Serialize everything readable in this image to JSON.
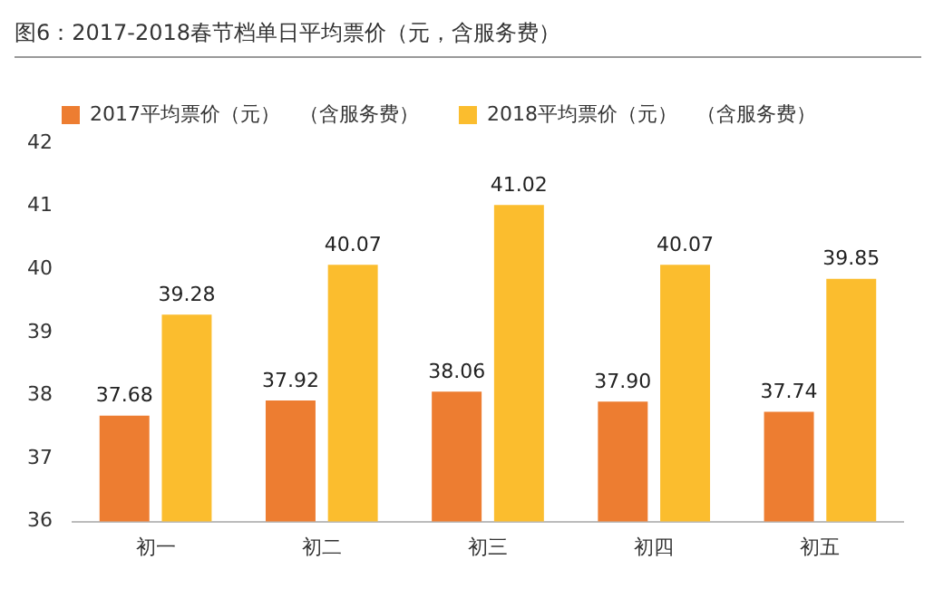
{
  "chart_data": {
    "type": "bar",
    "title": "图6：2017-2018春节档单日平均票价（元，含服务费）",
    "categories": [
      "初一",
      "初二",
      "初三",
      "初四",
      "初五"
    ],
    "series": [
      {
        "name": "2017平均票价（元）   （含服务费）",
        "color": "#ed7d31",
        "values": [
          37.68,
          37.92,
          38.06,
          37.9,
          37.74
        ],
        "value_labels": [
          "37.68",
          "37.92",
          "38.06",
          "37.90",
          "37.74"
        ]
      },
      {
        "name": "2018平均票价（元）   （含服务费）",
        "color": "#fbbd2e",
        "values": [
          39.28,
          40.07,
          41.02,
          40.07,
          39.85
        ],
        "value_labels": [
          "39.28",
          "40.07",
          "41.02",
          "40.07",
          "39.85"
        ]
      }
    ],
    "ylim": [
      36,
      42
    ],
    "yticks": [
      36,
      37,
      38,
      39,
      40,
      41,
      42
    ],
    "grid": false,
    "legend": "top left"
  }
}
